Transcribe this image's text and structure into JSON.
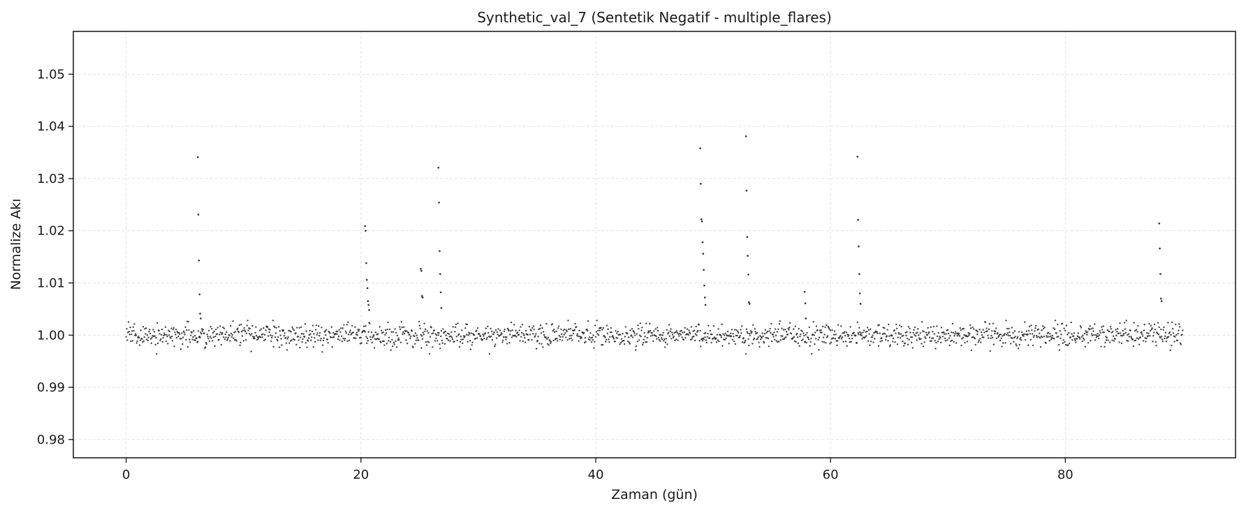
{
  "chart_data": {
    "type": "scatter",
    "title": "Synthetic_val_7 (Sentetik Negatif - multiple_flares)",
    "xlabel": "Zaman (gün)",
    "ylabel": "Normalize Akı",
    "xlim": [
      -4.5,
      94.5
    ],
    "ylim": [
      0.9765,
      1.0582
    ],
    "x_ticks": [
      0,
      20,
      40,
      60,
      80
    ],
    "x_tick_labels": [
      "0",
      "20",
      "40",
      "60",
      "80"
    ],
    "y_ticks": [
      0.98,
      0.99,
      1.0,
      1.01,
      1.02,
      1.03,
      1.04,
      1.05
    ],
    "y_tick_labels": [
      "0.98",
      "0.99",
      "1.00",
      "1.01",
      "1.02",
      "1.03",
      "1.04",
      "1.05"
    ],
    "grid": true,
    "marker_color": "#222222",
    "baseline": {
      "x_start": 0.0,
      "x_end": 90.0,
      "step": 0.05,
      "level": 1.0,
      "scatter_std": 0.0011
    },
    "flares": [
      {
        "x": [
          6.1,
          6.15,
          6.2,
          6.25,
          6.3,
          6.35
        ],
        "y": [
          1.0341,
          1.0231,
          1.0143,
          1.0078,
          1.0041,
          1.0032
        ]
      },
      {
        "x": [
          20.35,
          20.4,
          20.45,
          20.5,
          20.55,
          20.6,
          20.65,
          20.7
        ],
        "y": [
          1.0209,
          1.02,
          1.0138,
          1.0106,
          1.009,
          1.0065,
          1.0058,
          1.0048
        ]
      },
      {
        "x": [
          25.1,
          25.15,
          25.2,
          25.25
        ],
        "y": [
          1.0127,
          1.0123,
          1.0075,
          1.0072
        ]
      },
      {
        "x": [
          26.6,
          26.65,
          26.7,
          26.75,
          26.8,
          26.85
        ],
        "y": [
          1.0321,
          1.0254,
          1.0161,
          1.0117,
          1.0082,
          1.0052
        ]
      },
      {
        "x": [
          48.9,
          48.95,
          49.0,
          49.05,
          49.1,
          49.15,
          49.2,
          49.25,
          49.3,
          49.35
        ],
        "y": [
          1.0358,
          1.029,
          1.0222,
          1.0218,
          1.0178,
          1.0156,
          1.0125,
          1.0095,
          1.0072,
          1.0058
        ]
      },
      {
        "x": [
          52.8,
          52.85,
          52.9,
          52.95,
          53.0,
          53.05,
          53.1
        ],
        "y": [
          1.0381,
          1.0277,
          1.0188,
          1.0152,
          1.0116,
          1.0063,
          1.006
        ]
      },
      {
        "x": [
          57.8,
          57.85,
          57.9
        ],
        "y": [
          1.0083,
          1.0061,
          1.0032
        ]
      },
      {
        "x": [
          62.3,
          62.35,
          62.4,
          62.45,
          62.5,
          62.55
        ],
        "y": [
          1.0342,
          1.0221,
          1.017,
          1.0117,
          1.008,
          1.006
        ]
      },
      {
        "x": [
          88.0,
          88.05,
          88.1,
          88.15,
          88.2
        ],
        "y": [
          1.0214,
          1.0166,
          1.0117,
          1.007,
          1.0065
        ]
      }
    ]
  }
}
